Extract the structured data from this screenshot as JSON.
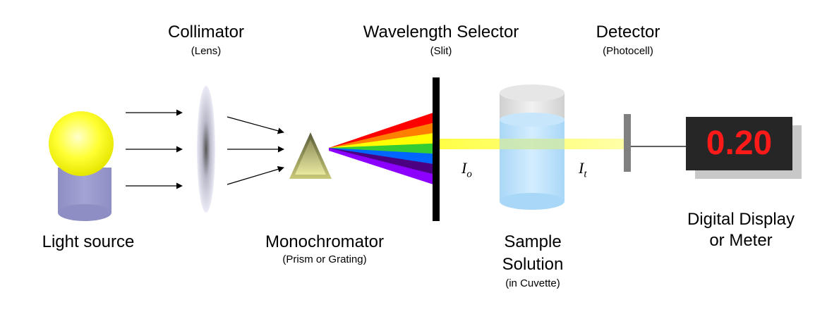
{
  "labels": {
    "collimator": "Collimator",
    "collimator_sub": "(Lens)",
    "wavelength_selector": "Wavelength Selector",
    "wavelength_selector_sub": "(Slit)",
    "detector": "Detector",
    "detector_sub": "(Photocell)",
    "light_source": "Light source",
    "monochromator": "Monochromator",
    "monochromator_sub": "(Prism or Grating)",
    "sample_line1": "Sample",
    "sample_line2": "Solution",
    "sample_sub": "(in Cuvette)",
    "display_line1": "Digital Display",
    "display_line2": "or Meter",
    "incident_intensity": "I",
    "incident_intensity_sub": "o",
    "transmitted_intensity": "I",
    "transmitted_intensity_sub": "t"
  },
  "display": {
    "value": "0.20",
    "text_color": "#ff1a1a",
    "panel_color": "#262626"
  },
  "spectrum_colors": [
    "#ff0000",
    "#ff8000",
    "#ffff00",
    "#33cc33",
    "#0066ff",
    "#4b0082",
    "#8b00ff"
  ],
  "colors": {
    "bulb": "#ffff33",
    "bulb_base": "#9999cc",
    "beam": "#ffff66",
    "cuvette_liquid": "#bfe4ff",
    "slit": "#000000",
    "detector_plate": "#808080"
  }
}
